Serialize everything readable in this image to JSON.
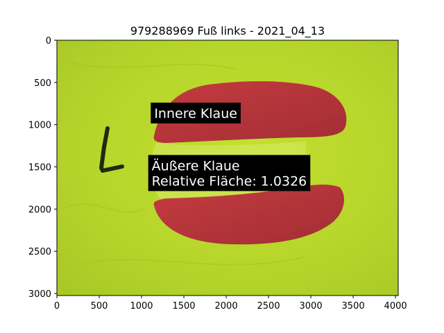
{
  "chart_data": {
    "type": "image",
    "title": "979288969 Fuß links - 2021_04_13",
    "xlim": [
      0,
      4032
    ],
    "ylim": [
      3024,
      0
    ],
    "x_ticks": [
      0,
      500,
      1000,
      1500,
      2000,
      2500,
      3000,
      3500,
      4000
    ],
    "y_ticks": [
      0,
      500,
      1000,
      1500,
      2000,
      2500,
      3000
    ],
    "x_tick_labels": [
      "0",
      "500",
      "1000",
      "1500",
      "2000",
      "2500",
      "3000",
      "3500",
      "4000"
    ],
    "y_tick_labels": [
      "0",
      "500",
      "1000",
      "1500",
      "2000",
      "2500",
      "3000"
    ],
    "annotations": [
      {
        "lines": [
          "Innere Klaue"
        ],
        "x": 1150,
        "y": 920
      },
      {
        "lines": [
          "Äußere Klaue",
          "Relative Fläche: 1.0326"
        ],
        "x": 1120,
        "y": 1540
      }
    ],
    "photo": {
      "description_colors": {
        "background": "#b6d52b",
        "claw_fill": "#b3353d",
        "marker": "#1e2a14"
      },
      "marker_text": "L"
    }
  }
}
